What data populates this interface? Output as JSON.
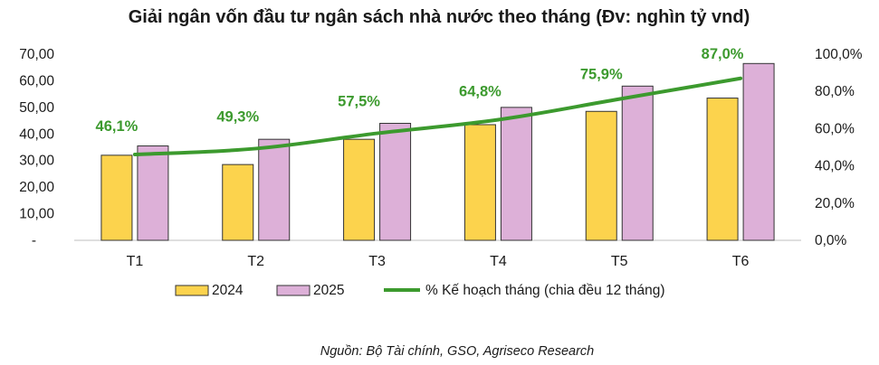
{
  "chart_data": {
    "type": "bar",
    "title": "Giải ngân vốn đầu tư ngân sách nhà nước theo tháng (Đv: nghìn tỷ vnd)",
    "categories": [
      "T1",
      "T2",
      "T3",
      "T4",
      "T5",
      "T6"
    ],
    "series": [
      {
        "name": "2024",
        "type": "bar",
        "axis": "left",
        "color": "#FCD34D",
        "values": [
          32.0,
          28.5,
          38.0,
          43.5,
          48.5,
          53.5
        ]
      },
      {
        "name": "2025",
        "type": "bar",
        "axis": "left",
        "color": "#DDB0D8",
        "values": [
          35.5,
          38.0,
          44.0,
          50.0,
          58.0,
          66.5
        ]
      },
      {
        "name": "% Kế hoạch tháng (chia đều 12 tháng)",
        "type": "line",
        "axis": "right",
        "color": "#3C9A2E",
        "values": [
          46.1,
          49.3,
          57.5,
          64.8,
          75.9,
          87.0
        ],
        "labels": [
          "46,1%",
          "49,3%",
          "57,5%",
          "64,8%",
          "75,9%",
          "87,0%"
        ]
      }
    ],
    "y_left": {
      "ylim": [
        0,
        70
      ],
      "ticks": [
        "-",
        "10,00",
        "20,00",
        "30,00",
        "40,00",
        "50,00",
        "60,00",
        "70,00"
      ]
    },
    "y_right": {
      "ylim": [
        0,
        100
      ],
      "ticks": [
        "0,0%",
        "20,0%",
        "40,0%",
        "60,0%",
        "80,0%",
        "100,0%"
      ]
    },
    "legend_placement": "bottom",
    "grid": false,
    "source": "Nguồn: Bộ Tài chính, GSO, Agriseco Research"
  }
}
